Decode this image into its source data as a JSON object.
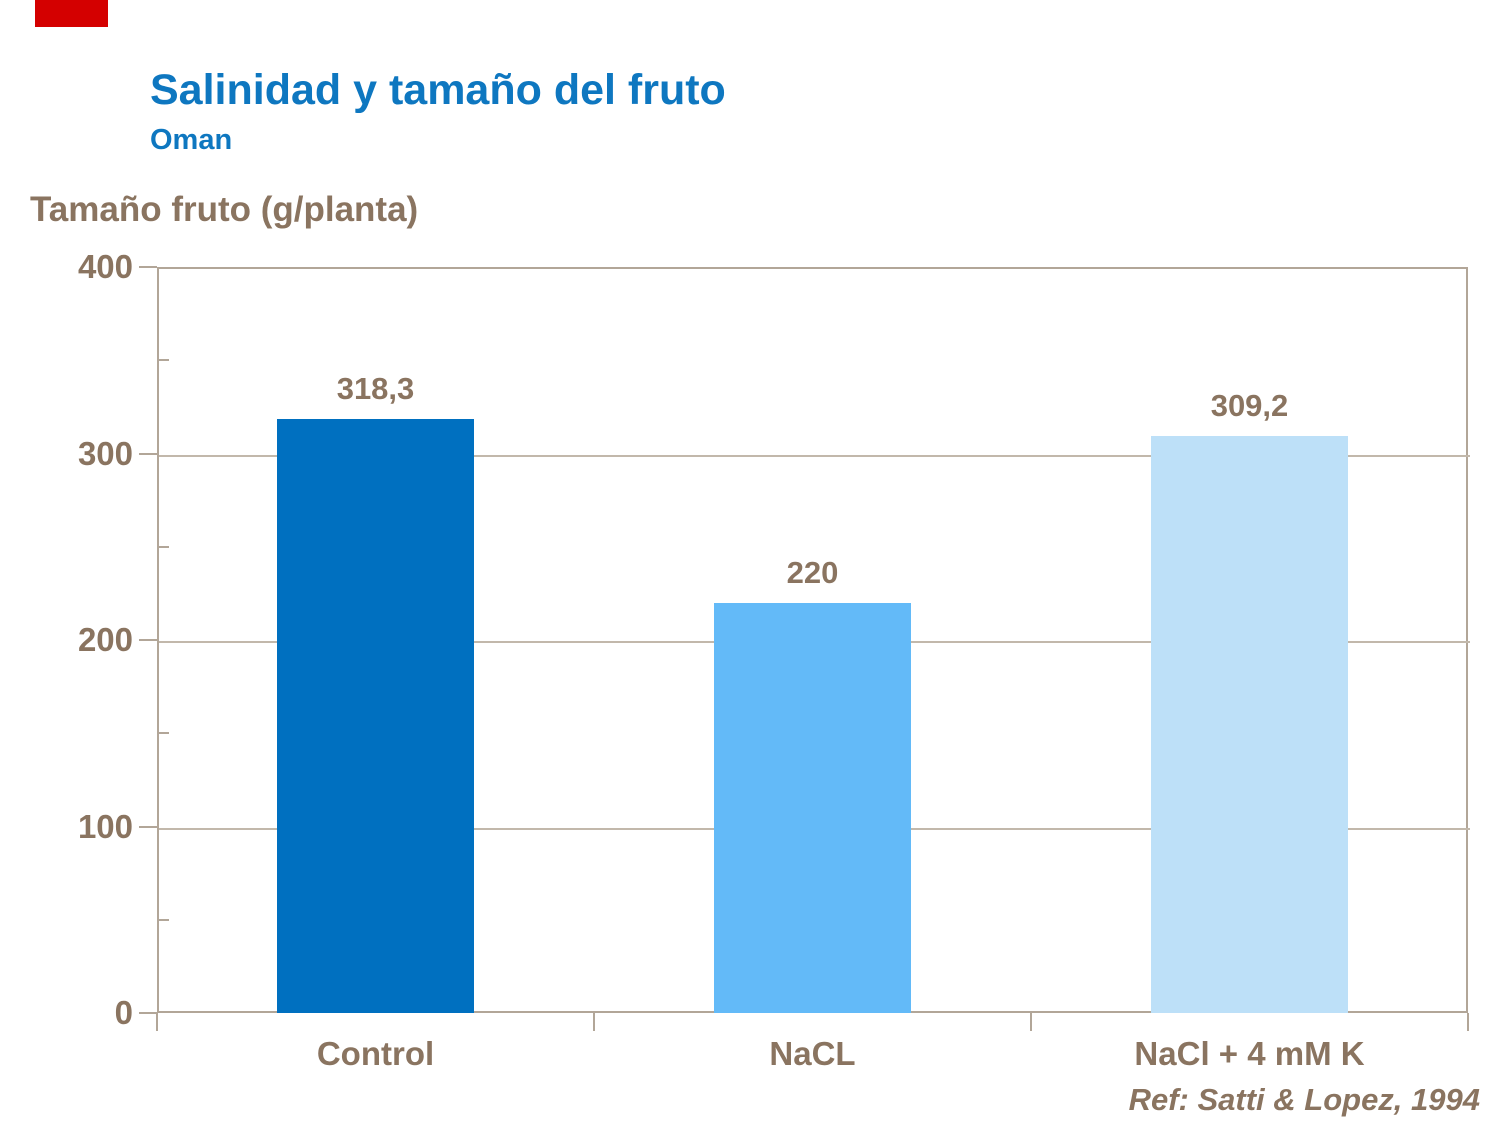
{
  "slide": {
    "title": "Salinidad y tamaño del fruto",
    "subtitle": "Oman",
    "reference": "Ref: Satti & Lopez, 1994"
  },
  "chart_data": {
    "type": "bar",
    "title": "Salinidad y tamaño del fruto",
    "subtitle": "Oman",
    "categories": [
      "Control",
      "NaCL",
      "NaCl + 4 mM K"
    ],
    "values": [
      318.3,
      220,
      309.2
    ],
    "value_labels": [
      "318,3",
      "220",
      "309,2"
    ],
    "bar_colors": [
      "#0070C0",
      "#63BAF8",
      "#BDE0F8"
    ],
    "xlabel": "",
    "ylabel": "Tamaño fruto (g/planta)",
    "ylim": [
      0,
      400
    ],
    "yticks": [
      0,
      100,
      200,
      300,
      400
    ],
    "minor_ytick_step": 50,
    "grid": "horizontal-major",
    "legend": "none",
    "annotation": "Ref: Satti & Lopez, 1994"
  },
  "colors": {
    "title_blue": "#0E77C0",
    "text_brown": "#8A7460",
    "axis_frame": "#B2A698",
    "gridline": "#C2B8AB",
    "red_mark": "#D40000",
    "background": "#FFFFFF"
  }
}
